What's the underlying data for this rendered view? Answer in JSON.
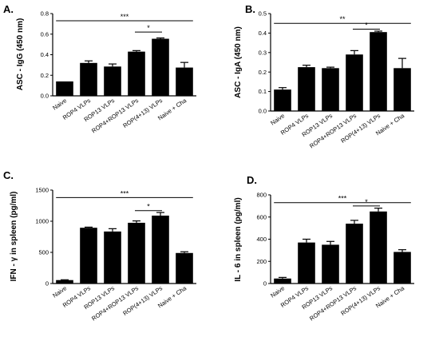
{
  "chart_data": [
    {
      "panel_label": "A.",
      "type": "bar",
      "ylabel": "ASC - IgG (450 nm)",
      "ylim": [
        0,
        0.8
      ],
      "yticks": [
        "0.0",
        "0.2",
        "0.4",
        "0.6",
        "0.8"
      ],
      "categories": [
        "Naive",
        "ROP4 VLPs",
        "ROP13 VLPs",
        "ROP4+ROP13 VLPs",
        "ROP(4+13) VLPs",
        "Naive + Cha"
      ],
      "values": [
        0.14,
        0.32,
        0.285,
        0.43,
        0.555,
        0.275
      ],
      "errors": [
        0.0,
        0.02,
        0.025,
        0.01,
        0.008,
        0.05
      ],
      "annotations": [
        {
          "label": "***",
          "from": 0,
          "to": 5,
          "level": 0.73
        },
        {
          "label": "*",
          "from": 3,
          "to": 4,
          "level": 0.62
        }
      ]
    },
    {
      "panel_label": "B.",
      "type": "bar",
      "ylabel": "ASC - IgA (450 nm)",
      "ylim": [
        0,
        0.5
      ],
      "yticks": [
        "0.0",
        "0.1",
        "0.2",
        "0.3",
        "0.4",
        "0.5"
      ],
      "categories": [
        "Naive",
        "ROP4 VLPs",
        "ROP13 VLPs",
        "ROP4+ROP13 VLPs",
        "ROP(4+13) VLPs",
        "Naive + Cha"
      ],
      "values": [
        0.11,
        0.225,
        0.22,
        0.29,
        0.405,
        0.22
      ],
      "errors": [
        0.01,
        0.01,
        0.005,
        0.02,
        0.005,
        0.05
      ],
      "annotations": [
        {
          "label": "**",
          "from": 0,
          "to": 5,
          "level": 0.45
        },
        {
          "label": "*",
          "from": 3,
          "to": 4,
          "level": 0.42
        }
      ]
    },
    {
      "panel_label": "C.",
      "type": "bar",
      "ylabel": "IFN - γ  in spleen (pg/ml)",
      "ylim": [
        0,
        1500
      ],
      "yticks": [
        "0",
        "500",
        "1000",
        "1500"
      ],
      "categories": [
        "Naive",
        "ROP4 VLPs",
        "ROP13 VLPs",
        "ROP4+ROP13 VLPs",
        "ROP(4+13) VLPs",
        "Naive + Cha"
      ],
      "values": [
        55,
        895,
        835,
        975,
        1090,
        490
      ],
      "errors": [
        5,
        10,
        45,
        30,
        50,
        20
      ],
      "annotations": [
        {
          "label": "***",
          "from": 0,
          "to": 5,
          "level": 1380
        },
        {
          "label": "*",
          "from": 3,
          "to": 4,
          "level": 1170
        }
      ]
    },
    {
      "panel_label": "D.",
      "type": "bar",
      "ylabel": "IL - 6 in spleen (pg/ml)",
      "ylim": [
        0,
        800
      ],
      "yticks": [
        "0",
        "200",
        "400",
        "600",
        "800"
      ],
      "categories": [
        "Naive",
        "ROP4 VLPs",
        "ROP13 VLPs",
        "ROP4+ROP13 VLPs",
        "ROP(4+13) VLPs",
        "Naive + Cha"
      ],
      "values": [
        45,
        370,
        350,
        540,
        650,
        285
      ],
      "errors": [
        10,
        30,
        30,
        30,
        30,
        20
      ],
      "annotations": [
        {
          "label": "***",
          "from": 0,
          "to": 5,
          "level": 730
        },
        {
          "label": "*",
          "from": 3,
          "to": 4,
          "level": 700
        }
      ]
    }
  ]
}
